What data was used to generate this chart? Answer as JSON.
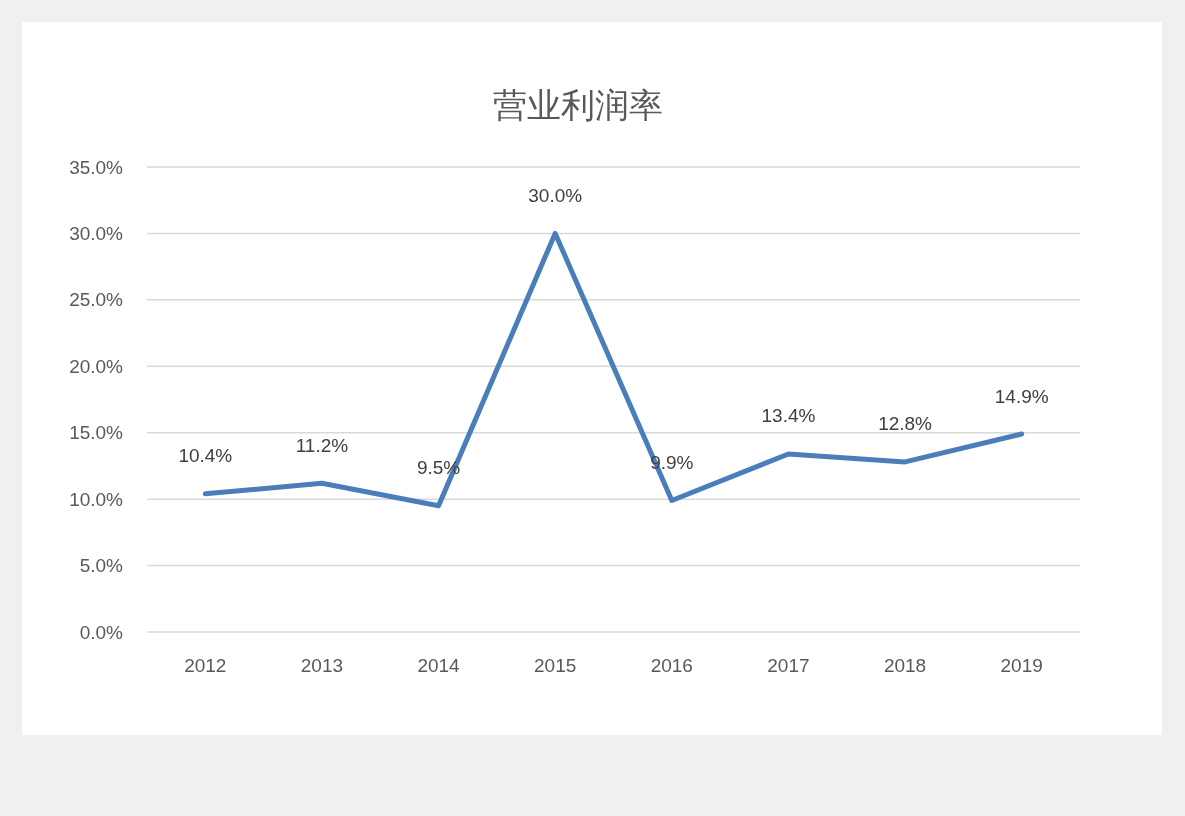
{
  "chart_data": {
    "type": "line",
    "title": "营业利润率",
    "categories": [
      "2012",
      "2013",
      "2014",
      "2015",
      "2016",
      "2017",
      "2018",
      "2019"
    ],
    "series": [
      {
        "color": "#4a7ebb",
        "values": [
          10.4,
          11.2,
          9.5,
          30.0,
          9.9,
          13.4,
          12.8,
          14.9
        ],
        "value_labels": [
          "10.4%",
          "11.2%",
          "9.5%",
          "30.0%",
          "9.9%",
          "13.4%",
          "12.8%",
          "14.9%"
        ]
      }
    ],
    "ylim": [
      0,
      35
    ],
    "yticks": [
      {
        "value": 0,
        "label": "0.0%"
      },
      {
        "value": 5,
        "label": "5.0%"
      },
      {
        "value": 10,
        "label": "10.0%"
      },
      {
        "value": 15,
        "label": "15.0%"
      },
      {
        "value": 20,
        "label": "20.0%"
      },
      {
        "value": 25,
        "label": "25.0%"
      },
      {
        "value": 30,
        "label": "30.0%"
      },
      {
        "value": 35,
        "label": "35.0%"
      }
    ],
    "grid": "y",
    "line_style": "solid"
  }
}
